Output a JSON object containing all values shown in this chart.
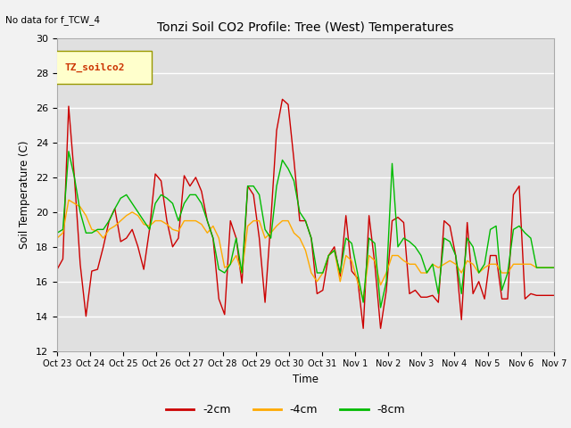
{
  "title": "Tonzi Soil CO2 Profile: Tree (West) Temperatures",
  "subtitle": "No data for f_TCW_4",
  "ylabel": "Soil Temperature (C)",
  "xlabel": "Time",
  "legend_label": "TZ_soilco2",
  "ylim": [
    12,
    30
  ],
  "yticks": [
    12,
    14,
    16,
    18,
    20,
    22,
    24,
    26,
    28,
    30
  ],
  "bg_color": "#e0e0e0",
  "fig_bg_color": "#f2f2f2",
  "line_2cm_color": "#cc0000",
  "line_4cm_color": "#ffaa00",
  "line_8cm_color": "#00bb00",
  "x_labels": [
    "Oct 23",
    "Oct 24",
    "Oct 25",
    "Oct 26",
    "Oct 27",
    "Oct 28",
    "Oct 29",
    "Oct 30",
    "Oct 31",
    "Nov 1",
    "Nov 2",
    "Nov 3",
    "Nov 4",
    "Nov 5",
    "Nov 6",
    "Nov 7"
  ],
  "t_2cm": [
    16.7,
    17.3,
    26.1,
    22.0,
    17.0,
    14.0,
    16.6,
    16.7,
    18.0,
    19.5,
    20.2,
    18.3,
    18.5,
    19.0,
    18.0,
    16.7,
    19.0,
    22.2,
    21.8,
    19.5,
    18.0,
    18.5,
    22.1,
    21.5,
    22.0,
    21.2,
    19.5,
    18.5,
    15.0,
    14.1,
    19.5,
    18.5,
    15.9,
    21.5,
    21.0,
    18.5,
    14.8,
    19.5,
    24.7,
    26.5,
    26.2,
    23.0,
    19.5,
    19.5,
    18.5,
    15.3,
    15.5,
    17.5,
    18.0,
    16.3,
    19.8,
    16.6,
    16.2,
    13.3,
    19.8,
    17.0,
    13.3,
    15.5,
    19.5,
    19.7,
    19.4,
    15.3,
    15.5,
    15.1,
    15.1,
    15.2,
    14.8,
    19.5,
    19.2,
    17.5,
    13.8,
    19.4,
    15.3,
    16.0,
    15.0,
    17.5,
    17.5,
    15.0,
    15.0,
    21.0,
    21.5,
    15.0,
    15.3,
    15.2,
    15.2,
    15.2,
    15.2
  ],
  "t_4cm": [
    18.5,
    18.8,
    20.7,
    20.5,
    20.3,
    19.8,
    19.0,
    18.9,
    18.5,
    19.0,
    19.2,
    19.5,
    19.8,
    20.0,
    19.8,
    19.3,
    19.2,
    19.5,
    19.5,
    19.3,
    19.0,
    18.9,
    19.5,
    19.5,
    19.5,
    19.3,
    18.8,
    19.2,
    18.5,
    16.8,
    17.0,
    17.5,
    16.5,
    19.2,
    19.5,
    19.5,
    18.5,
    18.8,
    19.2,
    19.5,
    19.5,
    18.8,
    18.5,
    17.8,
    16.5,
    16.0,
    16.5,
    17.5,
    17.8,
    16.0,
    17.5,
    17.2,
    16.0,
    15.0,
    17.5,
    17.2,
    15.8,
    16.5,
    17.5,
    17.5,
    17.2,
    17.0,
    17.0,
    16.5,
    16.5,
    17.0,
    16.8,
    17.0,
    17.2,
    17.0,
    16.5,
    17.2,
    17.0,
    16.5,
    16.8,
    17.0,
    17.0,
    16.5,
    16.5,
    17.0,
    17.0,
    17.0,
    17.0,
    16.8,
    16.8,
    16.8,
    16.8
  ],
  "t_8cm": [
    18.8,
    19.0,
    23.5,
    22.0,
    20.0,
    18.8,
    18.8,
    19.0,
    19.0,
    19.5,
    20.2,
    20.8,
    21.0,
    20.5,
    20.0,
    19.5,
    19.0,
    20.5,
    21.0,
    20.8,
    20.5,
    19.5,
    20.5,
    21.0,
    21.0,
    20.5,
    19.5,
    18.5,
    16.7,
    16.5,
    17.0,
    18.5,
    16.5,
    21.5,
    21.5,
    21.0,
    19.0,
    18.5,
    21.5,
    23.0,
    22.5,
    21.8,
    20.0,
    19.5,
    18.5,
    16.5,
    16.5,
    17.5,
    17.8,
    16.5,
    18.5,
    18.2,
    16.5,
    14.8,
    18.5,
    18.2,
    14.5,
    16.0,
    22.8,
    18.0,
    18.5,
    18.3,
    18.0,
    17.5,
    16.5,
    17.0,
    15.3,
    18.5,
    18.3,
    17.5,
    15.3,
    18.5,
    18.0,
    16.5,
    17.0,
    19.0,
    19.2,
    15.5,
    16.5,
    19.0,
    19.2,
    18.8,
    18.5,
    16.8,
    16.8,
    16.8,
    16.8
  ]
}
